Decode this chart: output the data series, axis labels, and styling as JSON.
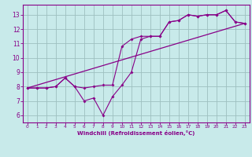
{
  "xlabel": "Windchill (Refroidissement éolien,°C)",
  "background_color": "#c8eaea",
  "grid_color": "#9dbfbf",
  "line_color": "#880088",
  "xlim": [
    -0.5,
    23.5
  ],
  "ylim": [
    5.5,
    13.7
  ],
  "xticks": [
    0,
    1,
    2,
    3,
    4,
    5,
    6,
    7,
    8,
    9,
    10,
    11,
    12,
    13,
    14,
    15,
    16,
    17,
    18,
    19,
    20,
    21,
    22,
    23
  ],
  "yticks": [
    6,
    7,
    8,
    9,
    10,
    11,
    12,
    13
  ],
  "line1_x": [
    0,
    1,
    2,
    3,
    4,
    5,
    6,
    7,
    8,
    9,
    10,
    11,
    12,
    13,
    14,
    15,
    16,
    17,
    18,
    19,
    20,
    21,
    22,
    23
  ],
  "line1_y": [
    7.9,
    7.9,
    7.9,
    8.0,
    8.6,
    8.0,
    7.0,
    7.2,
    6.0,
    7.3,
    8.1,
    9.0,
    11.3,
    11.5,
    11.5,
    12.5,
    12.6,
    13.0,
    12.9,
    13.0,
    13.0,
    13.3,
    12.5,
    12.4
  ],
  "line2_x": [
    0,
    1,
    2,
    3,
    4,
    5,
    6,
    7,
    8,
    9,
    10,
    11,
    12,
    13,
    14,
    15,
    16,
    17,
    18,
    19,
    20,
    21,
    22,
    23
  ],
  "line2_y": [
    7.9,
    7.9,
    7.9,
    8.0,
    8.6,
    8.0,
    7.9,
    8.0,
    8.1,
    8.1,
    10.8,
    11.3,
    11.5,
    11.5,
    11.5,
    12.5,
    12.6,
    13.0,
    12.9,
    13.0,
    13.0,
    13.3,
    12.5,
    12.4
  ],
  "line3_x": [
    0,
    23
  ],
  "line3_y": [
    7.9,
    12.4
  ]
}
